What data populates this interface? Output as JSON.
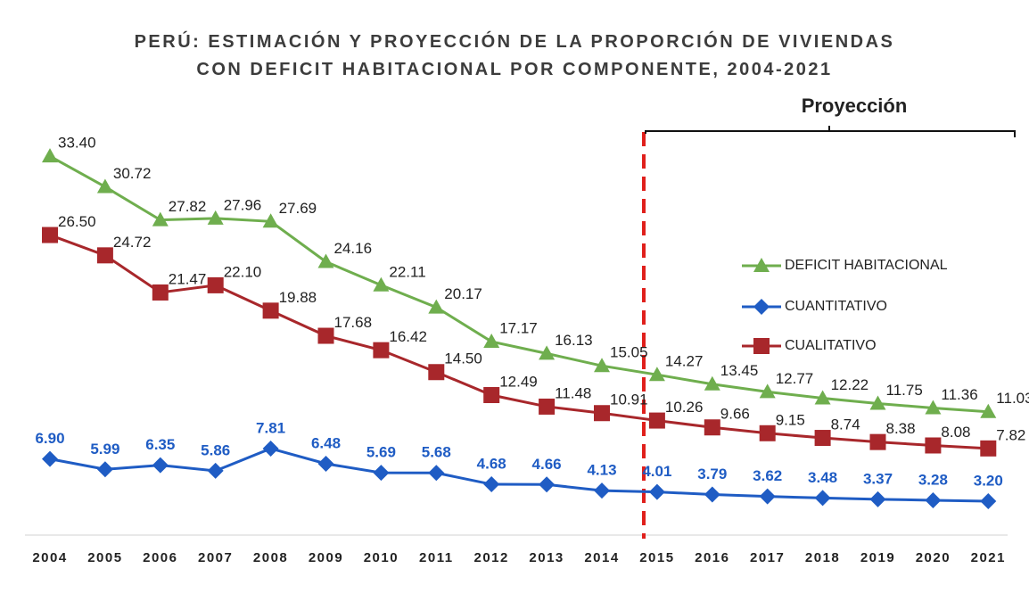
{
  "chart_data": {
    "type": "line",
    "title": "PERÚ: ESTIMACIÓN Y PROYECCIÓN DE LA PROPORCIÓN DE VIVIENDAS CON DEFICIT HABITACIONAL POR COMPONENTE, 2004-2021",
    "annotation": "Proyección",
    "categories": [
      "2004",
      "2005",
      "2006",
      "2007",
      "2008",
      "2009",
      "2010",
      "2011",
      "2012",
      "2013",
      "2014",
      "2015",
      "2016",
      "2017",
      "2018",
      "2019",
      "2020",
      "2021"
    ],
    "series": [
      {
        "name": "DEFICIT HABITACIONAL",
        "color": "#6fae4e",
        "marker": "triangle",
        "values": [
          33.4,
          30.72,
          27.82,
          27.96,
          27.69,
          24.16,
          22.11,
          20.17,
          17.17,
          16.13,
          15.05,
          14.27,
          13.45,
          12.77,
          12.22,
          11.75,
          11.36,
          11.03
        ],
        "value_labels": [
          "33.40",
          "30.72",
          "27.82",
          "27.96",
          "27.69",
          "24.16",
          "22.11",
          "20.17",
          "17.17",
          "16.13",
          "15.05",
          "14.27",
          "13.45",
          "12.77",
          "12.22",
          "11.75",
          "11.36",
          "11.03"
        ]
      },
      {
        "name": "CUANTITATIVO",
        "color": "#1f5cc4",
        "marker": "diamond",
        "values": [
          6.9,
          5.99,
          6.35,
          5.86,
          7.81,
          6.48,
          5.69,
          5.68,
          4.68,
          4.66,
          4.13,
          4.01,
          3.79,
          3.62,
          3.48,
          3.37,
          3.28,
          3.2
        ],
        "value_labels": [
          "6.90",
          "5.99",
          "6.35",
          "5.86",
          "7.81",
          "6.48",
          "5.69",
          "5.68",
          "4.68",
          "4.66",
          "4.13",
          "4.01",
          "3.79",
          "3.62",
          "3.48",
          "3.37",
          "3.28",
          "3.20"
        ]
      },
      {
        "name": "CUALITATIVO",
        "color": "#a8272b",
        "marker": "square",
        "values": [
          26.5,
          24.72,
          21.47,
          22.1,
          19.88,
          17.68,
          16.42,
          14.5,
          12.49,
          11.48,
          10.91,
          10.26,
          9.66,
          9.15,
          8.74,
          8.38,
          8.08,
          7.82
        ],
        "value_labels": [
          "26.50",
          "24.72",
          "21.47",
          "22.10",
          "19.88",
          "17.68",
          "16.42",
          "14.50",
          "12.49",
          "11.48",
          "10.91",
          "10.26",
          "9.66",
          "9.15",
          "8.74",
          "8.38",
          "8.08",
          "7.82"
        ]
      }
    ]
  }
}
